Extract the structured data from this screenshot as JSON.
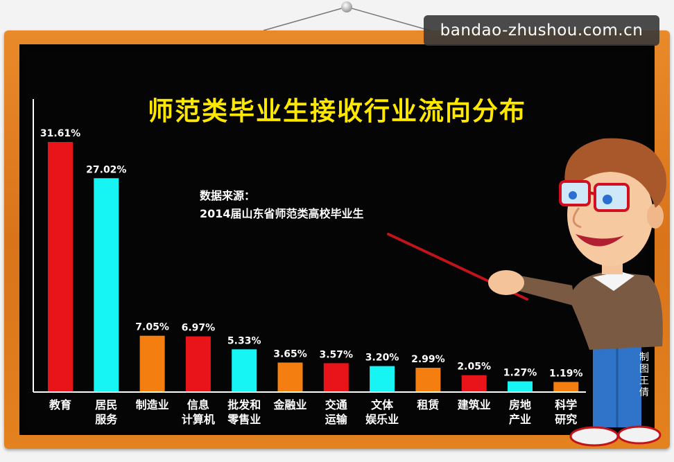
{
  "watermark": "bandao-zhushou.com.cn",
  "source_label": "数据来源：",
  "source_text": "2014届山东省师范类高校毕业生",
  "credit": "制图 王倩",
  "chart_data": {
    "type": "bar",
    "title": "师范类毕业生接收行业流向分布",
    "xlabel": "",
    "ylabel": "",
    "ylim": [
      0,
      35
    ],
    "grid": false,
    "legend": "none",
    "categories": [
      [
        "教育"
      ],
      [
        "居民",
        "服务"
      ],
      [
        "制造业"
      ],
      [
        "信息",
        "计算机"
      ],
      [
        "批发和",
        "零售业"
      ],
      [
        "金融业"
      ],
      [
        "交通",
        "运输"
      ],
      [
        "文体",
        "娱乐业"
      ],
      [
        "租赁"
      ],
      [
        "建筑业"
      ],
      [
        "房地",
        "产业"
      ],
      [
        "科学",
        "研究"
      ]
    ],
    "values": [
      31.61,
      27.02,
      7.05,
      6.97,
      5.33,
      3.65,
      3.57,
      3.2,
      2.99,
      2.05,
      1.27,
      1.19
    ],
    "value_labels": [
      "31.61%",
      "27.02%",
      "7.05%",
      "6.97%",
      "5.33%",
      "3.65%",
      "3.57%",
      "3.20%",
      "2.99%",
      "2.05%",
      "1.27%",
      "1.19%"
    ],
    "colors": [
      "#e8141a",
      "#16f4f4",
      "#f47f10",
      "#e8141a",
      "#16f4f4",
      "#f47f10",
      "#e8141a",
      "#16f4f4",
      "#f47f10",
      "#e8141a",
      "#16f4f4",
      "#f47f10"
    ],
    "axis_color": "#ffffff"
  }
}
